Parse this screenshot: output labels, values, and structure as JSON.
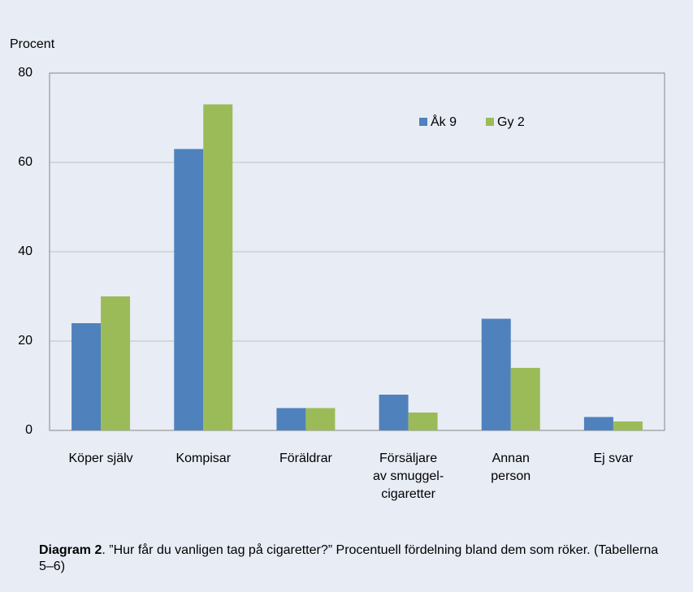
{
  "chart_data": {
    "type": "bar",
    "y_label": "Procent",
    "categories": [
      "Köper själv",
      "Kompisar",
      "Föräldrar",
      "Försäljare\nav smuggel-\ncigaretter",
      "Annan\nperson",
      "Ej svar"
    ],
    "series": [
      {
        "name": "Åk 9",
        "color": "#4f81bd",
        "values": [
          24,
          63,
          5,
          8,
          25,
          3
        ]
      },
      {
        "name": "Gy 2",
        "color": "#9bbb59",
        "values": [
          30,
          73,
          5,
          4,
          14,
          2
        ]
      }
    ],
    "ylim": [
      0,
      80
    ],
    "yticks": [
      0,
      20,
      40,
      60,
      80
    ],
    "grid": true,
    "legend": "top-right"
  },
  "caption": {
    "label": "Diagram 2",
    "text": ". ”Hur får du vanligen tag på cigaretter?” Procentuell fördelning bland dem som röker. (Tabellerna 5–6)"
  }
}
